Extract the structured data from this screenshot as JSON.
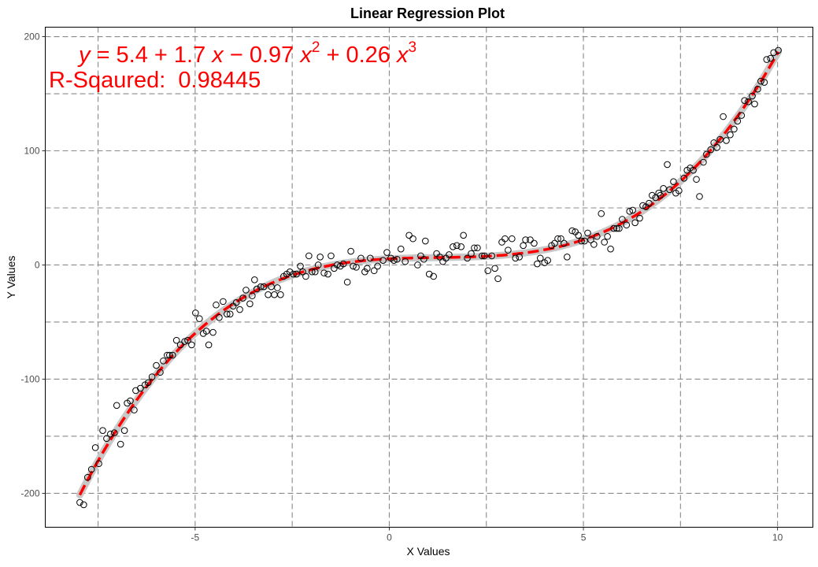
{
  "chart_data": {
    "type": "scatter",
    "title": "Linear Regression Plot",
    "xlabel": "X Values",
    "ylabel": "Y Values",
    "xlim": [
      -8.86,
      10.91
    ],
    "ylim": [
      -229.7,
      208.3
    ],
    "x_ticks": [
      "-5",
      "0",
      "5",
      "10"
    ],
    "x_tick_values": [
      -5,
      0,
      5,
      10
    ],
    "y_ticks": [
      "-200",
      "-100",
      "0",
      "100",
      "200"
    ],
    "y_tick_values": [
      -200,
      -100,
      0,
      100,
      200
    ],
    "grid": true,
    "grid_style": "dashed, major and minor",
    "minor_x_values": [
      -7.5,
      -2.5,
      2.5,
      7.5
    ],
    "minor_y_values": [
      -150,
      -50,
      50,
      150
    ],
    "colors": {
      "points": "#000000",
      "fit_line": "#ff0000",
      "confidence_band": "#c8c8c8",
      "grid": "#8a8a8a",
      "annotation": "#ff0000"
    },
    "fit": {
      "type": "polynomial",
      "degree": 3,
      "coefficients": [
        5.4,
        1.7,
        -0.97,
        0.26
      ],
      "line_style": "dashed"
    },
    "annotation": {
      "equation_parts": [
        "y",
        " = 5.4 + 1.7 ",
        "x",
        " − 0.97 ",
        "x",
        "2",
        " + 0.26 ",
        "x",
        "3"
      ],
      "r_squared": "R-Sqaured:  0.98445"
    },
    "points": [
      [
        -7.97,
        -208
      ],
      [
        -7.87,
        -210
      ],
      [
        -7.77,
        -186
      ],
      [
        -7.67,
        -179
      ],
      [
        -7.57,
        -160
      ],
      [
        -7.48,
        -174
      ],
      [
        -7.38,
        -145
      ],
      [
        -7.28,
        -152
      ],
      [
        -7.18,
        -148
      ],
      [
        -7.08,
        -147
      ],
      [
        -7.02,
        -123
      ],
      [
        -6.92,
        -157
      ],
      [
        -6.82,
        -145
      ],
      [
        -6.75,
        -121
      ],
      [
        -6.67,
        -119
      ],
      [
        -6.57,
        -127
      ],
      [
        -6.53,
        -110
      ],
      [
        -6.41,
        -108
      ],
      [
        -6.29,
        -105
      ],
      [
        -6.21,
        -103
      ],
      [
        -6.11,
        -98
      ],
      [
        -6.0,
        -88
      ],
      [
        -5.9,
        -94
      ],
      [
        -5.82,
        -84
      ],
      [
        -5.72,
        -79
      ],
      [
        -5.66,
        -79
      ],
      [
        -5.58,
        -79
      ],
      [
        -5.48,
        -66
      ],
      [
        -5.38,
        -70
      ],
      [
        -5.27,
        -67
      ],
      [
        -5.19,
        -66
      ],
      [
        -5.09,
        -70
      ],
      [
        -4.99,
        -42
      ],
      [
        -4.89,
        -47
      ],
      [
        -4.79,
        -60
      ],
      [
        -4.71,
        -58
      ],
      [
        -4.65,
        -70
      ],
      [
        -4.54,
        -59
      ],
      [
        -4.46,
        -35
      ],
      [
        -4.38,
        -46
      ],
      [
        -4.28,
        -32
      ],
      [
        -4.18,
        -43
      ],
      [
        -4.1,
        -43
      ],
      [
        -4.02,
        -36
      ],
      [
        -3.94,
        -33
      ],
      [
        -3.85,
        -39
      ],
      [
        -3.77,
        -29
      ],
      [
        -3.69,
        -22
      ],
      [
        -3.59,
        -34
      ],
      [
        -3.53,
        -27
      ],
      [
        -3.47,
        -13
      ],
      [
        -3.41,
        -21
      ],
      [
        -3.31,
        -19
      ],
      [
        -3.23,
        -19
      ],
      [
        -3.12,
        -26
      ],
      [
        -3.04,
        -19
      ],
      [
        -2.96,
        -26
      ],
      [
        -2.88,
        -20
      ],
      [
        -2.8,
        -26
      ],
      [
        -2.72,
        -10
      ],
      [
        -2.64,
        -8
      ],
      [
        -2.56,
        -6
      ],
      [
        -2.47,
        -8
      ],
      [
        -2.39,
        -8
      ],
      [
        -2.29,
        -1
      ],
      [
        -2.23,
        -6
      ],
      [
        -2.15,
        -10
      ],
      [
        -2.07,
        8
      ],
      [
        -1.99,
        -6
      ],
      [
        -1.91,
        -6
      ],
      [
        -1.83,
        0
      ],
      [
        -1.78,
        7
      ],
      [
        -1.68,
        -7
      ],
      [
        -1.58,
        -8
      ],
      [
        -1.5,
        8
      ],
      [
        -1.42,
        -3
      ],
      [
        -1.34,
        0
      ],
      [
        -1.26,
        -1
      ],
      [
        -1.18,
        1
      ],
      [
        -1.08,
        -15
      ],
      [
        -0.99,
        12
      ],
      [
        -0.93,
        -1
      ],
      [
        -0.85,
        -2
      ],
      [
        -0.73,
        6
      ],
      [
        -0.63,
        -6
      ],
      [
        -0.57,
        -3
      ],
      [
        -0.49,
        6
      ],
      [
        -0.39,
        -5
      ],
      [
        -0.3,
        -1
      ],
      [
        -0.16,
        4
      ],
      [
        -0.06,
        11
      ],
      [
        0.04,
        6
      ],
      [
        0.12,
        4
      ],
      [
        0.2,
        5
      ],
      [
        0.3,
        14
      ],
      [
        0.41,
        3
      ],
      [
        0.51,
        26
      ],
      [
        0.61,
        23
      ],
      [
        0.73,
        0
      ],
      [
        0.81,
        8
      ],
      [
        0.89,
        5
      ],
      [
        0.93,
        21
      ],
      [
        1.03,
        -8
      ],
      [
        1.14,
        -10
      ],
      [
        1.22,
        10
      ],
      [
        1.3,
        7
      ],
      [
        1.38,
        3
      ],
      [
        1.46,
        6
      ],
      [
        1.54,
        9
      ],
      [
        1.64,
        16
      ],
      [
        1.74,
        17
      ],
      [
        1.85,
        16
      ],
      [
        1.91,
        26
      ],
      [
        2.01,
        6
      ],
      [
        2.11,
        10
      ],
      [
        2.19,
        15
      ],
      [
        2.27,
        15
      ],
      [
        2.39,
        8
      ],
      [
        2.45,
        8
      ],
      [
        2.54,
        -5
      ],
      [
        2.64,
        8
      ],
      [
        2.72,
        -3
      ],
      [
        2.8,
        -12
      ],
      [
        2.9,
        20
      ],
      [
        2.98,
        23
      ],
      [
        3.06,
        13
      ],
      [
        3.16,
        23
      ],
      [
        3.25,
        6
      ],
      [
        3.35,
        7
      ],
      [
        3.45,
        17
      ],
      [
        3.51,
        22
      ],
      [
        3.63,
        22
      ],
      [
        3.73,
        19
      ],
      [
        3.81,
        1
      ],
      [
        3.89,
        6
      ],
      [
        4.0,
        2
      ],
      [
        4.08,
        4
      ],
      [
        4.18,
        17
      ],
      [
        4.26,
        19
      ],
      [
        4.34,
        23
      ],
      [
        4.42,
        23
      ],
      [
        4.5,
        19
      ],
      [
        4.58,
        7
      ],
      [
        4.71,
        30
      ],
      [
        4.79,
        29
      ],
      [
        4.87,
        26
      ],
      [
        4.95,
        21
      ],
      [
        5.03,
        21
      ],
      [
        5.11,
        28
      ],
      [
        5.19,
        22
      ],
      [
        5.27,
        18
      ],
      [
        5.35,
        25
      ],
      [
        5.46,
        45
      ],
      [
        5.54,
        20
      ],
      [
        5.62,
        25
      ],
      [
        5.7,
        14
      ],
      [
        5.78,
        32
      ],
      [
        5.86,
        32
      ],
      [
        5.92,
        32
      ],
      [
        6.0,
        40
      ],
      [
        6.11,
        35
      ],
      [
        6.19,
        47
      ],
      [
        6.27,
        48
      ],
      [
        6.33,
        37
      ],
      [
        6.45,
        41
      ],
      [
        6.53,
        52
      ],
      [
        6.61,
        51
      ],
      [
        6.69,
        54
      ],
      [
        6.77,
        61
      ],
      [
        6.86,
        59
      ],
      [
        6.94,
        63
      ],
      [
        6.98,
        61
      ],
      [
        7.06,
        67
      ],
      [
        7.16,
        88
      ],
      [
        7.22,
        66
      ],
      [
        7.32,
        73
      ],
      [
        7.38,
        63
      ],
      [
        7.46,
        65
      ],
      [
        7.59,
        76
      ],
      [
        7.67,
        83
      ],
      [
        7.75,
        85
      ],
      [
        7.83,
        83
      ],
      [
        7.91,
        75
      ],
      [
        7.99,
        60
      ],
      [
        8.09,
        90
      ],
      [
        8.17,
        97
      ],
      [
        8.28,
        101
      ],
      [
        8.36,
        107
      ],
      [
        8.44,
        103
      ],
      [
        8.52,
        110
      ],
      [
        8.6,
        130
      ],
      [
        8.68,
        109
      ],
      [
        8.78,
        114
      ],
      [
        8.88,
        119
      ],
      [
        8.97,
        126
      ],
      [
        9.07,
        131
      ],
      [
        9.15,
        144
      ],
      [
        9.25,
        143
      ],
      [
        9.35,
        148
      ],
      [
        9.41,
        141
      ],
      [
        9.49,
        154
      ],
      [
        9.57,
        161
      ],
      [
        9.66,
        160
      ],
      [
        9.72,
        180
      ],
      [
        9.82,
        181
      ],
      [
        9.9,
        186
      ],
      [
        10.02,
        188
      ]
    ]
  }
}
